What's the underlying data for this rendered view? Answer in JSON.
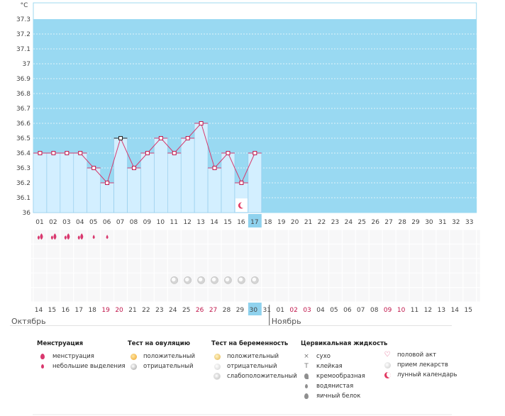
{
  "chart_data": {
    "type": "line",
    "ylabel": "°C",
    "ylim": [
      36,
      37.4
    ],
    "yticks": [
      "36",
      "36.1",
      "36.2",
      "36.3",
      "36.4",
      "36.5",
      "36.6",
      "36.7",
      "36.8",
      "36.9",
      "37",
      "37.1",
      "37.2",
      "37.3"
    ],
    "cycle_days": [
      "01",
      "02",
      "03",
      "04",
      "05",
      "06",
      "07",
      "08",
      "09",
      "10",
      "11",
      "12",
      "13",
      "14",
      "15",
      "16",
      "17",
      "18",
      "19",
      "20",
      "21",
      "22",
      "23",
      "24",
      "25",
      "26",
      "27",
      "28",
      "29",
      "30",
      "31",
      "32",
      "33"
    ],
    "current_day": "17",
    "temperatures": [
      36.4,
      36.4,
      36.4,
      36.4,
      36.3,
      36.2,
      36.5,
      36.3,
      36.4,
      36.5,
      36.4,
      36.5,
      36.6,
      36.3,
      36.4,
      36.2,
      36.4
    ],
    "highlighted_point": 6,
    "moon_day": 16,
    "menstruation": [
      "heavy",
      "heavy",
      "heavy",
      "heavy",
      "light",
      "light"
    ],
    "pill_days": [
      11,
      12,
      13,
      14,
      15,
      16,
      17
    ],
    "dates": [
      {
        "label": "14",
        "red": false
      },
      {
        "label": "15",
        "red": false
      },
      {
        "label": "16",
        "red": false
      },
      {
        "label": "17",
        "red": false
      },
      {
        "label": "18",
        "red": false
      },
      {
        "label": "19",
        "red": true
      },
      {
        "label": "20",
        "red": true
      },
      {
        "label": "21",
        "red": false
      },
      {
        "label": "22",
        "red": false
      },
      {
        "label": "23",
        "red": false
      },
      {
        "label": "24",
        "red": false
      },
      {
        "label": "25",
        "red": false
      },
      {
        "label": "26",
        "red": true
      },
      {
        "label": "27",
        "red": true
      },
      {
        "label": "28",
        "red": false
      },
      {
        "label": "29",
        "red": false
      },
      {
        "label": "30",
        "red": false
      },
      {
        "label": "31",
        "red": false
      },
      {
        "label": "01",
        "red": false
      },
      {
        "label": "02",
        "red": true
      },
      {
        "label": "03",
        "red": true
      },
      {
        "label": "04",
        "red": false
      },
      {
        "label": "05",
        "red": false
      },
      {
        "label": "06",
        "red": false
      },
      {
        "label": "07",
        "red": false
      },
      {
        "label": "08",
        "red": false
      },
      {
        "label": "09",
        "red": true
      },
      {
        "label": "10",
        "red": true
      },
      {
        "label": "11",
        "red": false
      },
      {
        "label": "12",
        "red": false
      },
      {
        "label": "13",
        "red": false
      },
      {
        "label": "14",
        "red": false
      },
      {
        "label": "15",
        "red": false
      }
    ],
    "current_date_index": 16,
    "months": [
      "Октябрь",
      "Ноябрь"
    ],
    "colors": {
      "background": "#99d9f2",
      "bar": "#d3efff",
      "bar_border": "#8fc9ea",
      "line": "#d63a6e",
      "marker": "#c0164b",
      "red_text": "#c0164b",
      "highlight": "#8fd2ee"
    }
  },
  "legend": {
    "menstruation": {
      "title": "Менструация",
      "items": [
        {
          "icon": "blood-drop-icon",
          "label": "менструация"
        },
        {
          "icon": "small-drop-icon",
          "label": "небольшие выделения"
        }
      ]
    },
    "ovulation": {
      "title": "Тест на овуляцию",
      "items": [
        {
          "icon": "positive-test-icon",
          "label": "положительный"
        },
        {
          "icon": "negative-test-icon",
          "label": "отрицательный"
        }
      ]
    },
    "pregnancy": {
      "title": "Тест на беременность",
      "items": [
        {
          "icon": "positive-test-icon",
          "label": "положительный"
        },
        {
          "icon": "negative-test-icon",
          "label": "отрицательный"
        },
        {
          "icon": "weak-positive-test-icon",
          "label": "слабоположительный"
        }
      ]
    },
    "cervical": {
      "title": "Цервикальная жидкость",
      "items": [
        {
          "icon": "dry-icon",
          "label": "сухо"
        },
        {
          "icon": "sticky-icon",
          "label": "клейкая"
        },
        {
          "icon": "creamy-icon",
          "label": "кремообразная"
        },
        {
          "icon": "watery-icon",
          "label": "водянистая"
        },
        {
          "icon": "egg-white-icon",
          "label": "яичный белок"
        }
      ]
    },
    "other": {
      "items": [
        {
          "icon": "heart-icon",
          "label": "половой акт"
        },
        {
          "icon": "pill-icon",
          "label": "прием лекарств"
        },
        {
          "icon": "moon-icon",
          "label": "лунный календарь"
        }
      ]
    }
  }
}
